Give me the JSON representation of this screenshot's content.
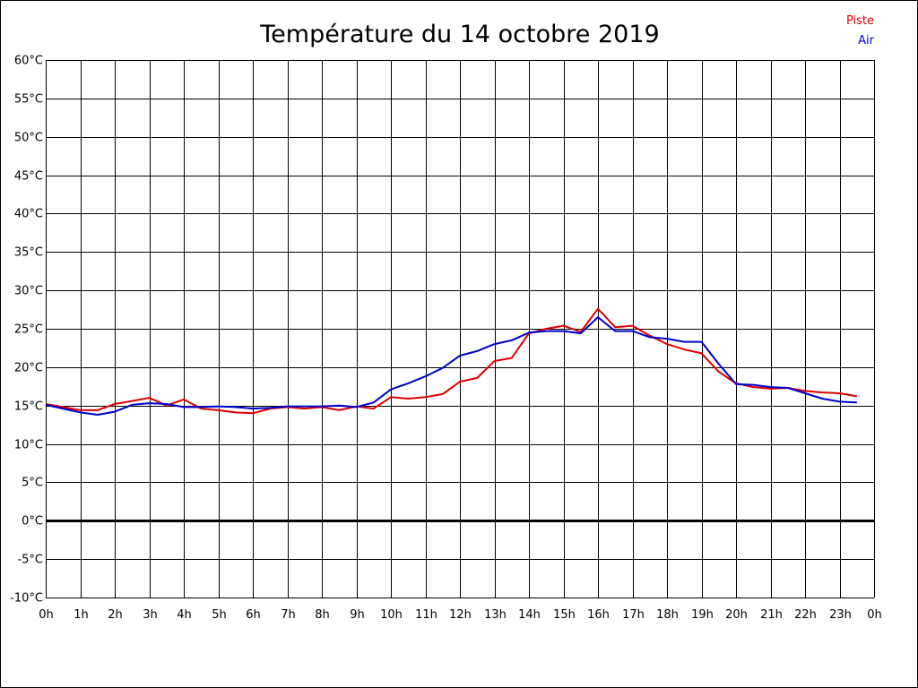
{
  "chart_data": {
    "type": "line",
    "title": "Température du 14 octobre 2019",
    "xlabel": "",
    "ylabel": "",
    "x_unit": "hour",
    "xlim": [
      0,
      24
    ],
    "ylim": [
      -10,
      60
    ],
    "grid": true,
    "legend_position": "top-right",
    "x_tick_labels": [
      "0h",
      "1h",
      "2h",
      "3h",
      "4h",
      "5h",
      "6h",
      "7h",
      "8h",
      "9h",
      "10h",
      "11h",
      "12h",
      "13h",
      "14h",
      "15h",
      "16h",
      "17h",
      "18h",
      "19h",
      "20h",
      "21h",
      "22h",
      "23h",
      "0h"
    ],
    "y_tick_labels": [
      "60°C",
      "55°C",
      "50°C",
      "45°C",
      "40°C",
      "35°C",
      "30°C",
      "25°C",
      "20°C",
      "15°C",
      "10°C",
      "5°C",
      "0°C",
      "-5°C",
      "-10°C"
    ],
    "y_tick_values": [
      60,
      55,
      50,
      45,
      40,
      35,
      30,
      25,
      20,
      15,
      10,
      5,
      0,
      -5,
      -10
    ],
    "x": [
      0,
      0.5,
      1,
      1.5,
      2,
      2.5,
      3,
      3.5,
      4,
      4.5,
      5,
      5.5,
      6,
      6.5,
      7,
      7.5,
      8,
      8.5,
      9,
      9.5,
      10,
      10.5,
      11,
      11.5,
      12,
      12.5,
      13,
      13.5,
      14,
      14.5,
      15,
      15.5,
      16,
      16.5,
      17,
      17.5,
      18,
      18.5,
      19,
      19.5,
      20,
      20.5,
      21,
      21.5,
      22,
      22.5,
      23,
      23.5
    ],
    "series": [
      {
        "name": "Piste",
        "color": "#dd0000",
        "values": [
          15.2,
          14.8,
          14.4,
          14.4,
          15.2,
          15.6,
          16.0,
          15.0,
          15.8,
          14.6,
          14.4,
          14.1,
          14.0,
          14.6,
          14.8,
          14.6,
          14.8,
          14.4,
          14.9,
          14.6,
          16.1,
          15.9,
          16.1,
          16.5,
          18.1,
          18.6,
          20.8,
          21.2,
          24.4,
          25.0,
          25.4,
          24.6,
          27.6,
          25.2,
          25.4,
          24.1,
          23.0,
          22.3,
          21.8,
          19.4,
          17.9,
          17.4,
          17.2,
          17.3,
          16.9,
          16.7,
          16.6,
          16.2
        ]
      },
      {
        "name": "Air",
        "color": "#0000cc",
        "values": [
          15.1,
          14.6,
          14.1,
          13.8,
          14.2,
          15.1,
          15.3,
          15.2,
          14.8,
          14.8,
          14.9,
          14.8,
          14.6,
          14.7,
          14.9,
          14.9,
          14.9,
          15.0,
          14.8,
          15.4,
          17.1,
          17.9,
          18.8,
          19.9,
          21.5,
          22.1,
          23.0,
          23.5,
          24.5,
          24.7,
          24.7,
          24.4,
          26.5,
          24.7,
          24.7,
          23.9,
          23.7,
          23.3,
          23.3,
          20.4,
          17.8,
          17.7,
          17.4,
          17.3,
          16.6,
          15.9,
          15.5,
          15.4
        ]
      }
    ]
  }
}
